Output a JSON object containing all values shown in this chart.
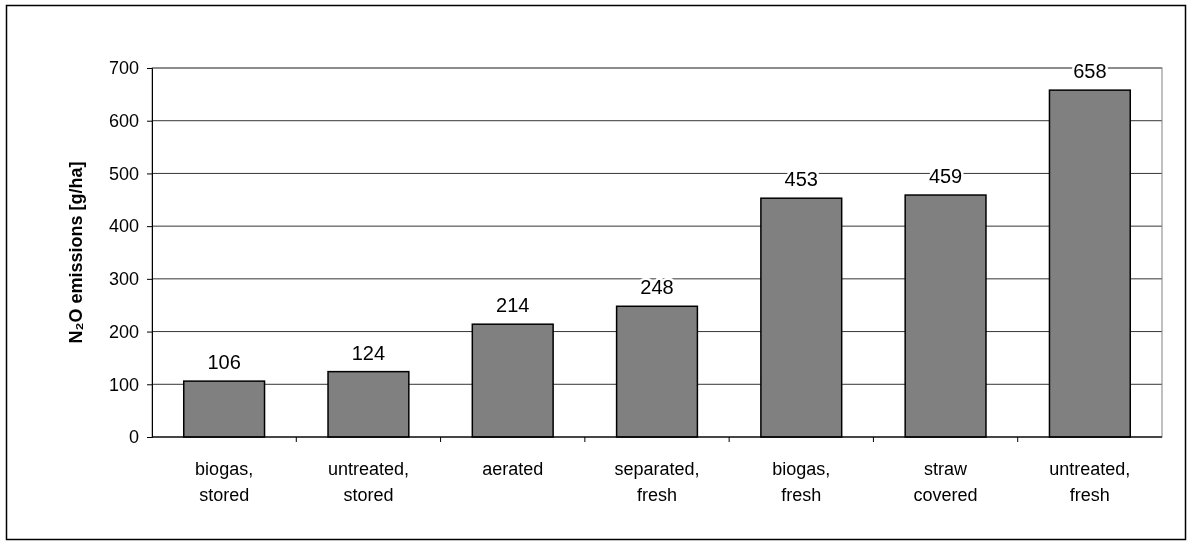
{
  "chart_data": {
    "type": "bar",
    "ylabel": "N₂O emissions [g/ha]",
    "categories": [
      "biogas, stored",
      "untreated, stored",
      "aerated",
      "separated, fresh",
      "biogas, fresh",
      "straw covered",
      "untreated, fresh"
    ],
    "values": [
      106,
      124,
      214,
      248,
      453,
      459,
      658
    ],
    "color": "#808080",
    "ylim": [
      0,
      700
    ],
    "yticks": [
      0,
      100,
      200,
      300,
      400,
      500,
      600,
      700
    ],
    "grid": "y",
    "data_labels": true
  }
}
